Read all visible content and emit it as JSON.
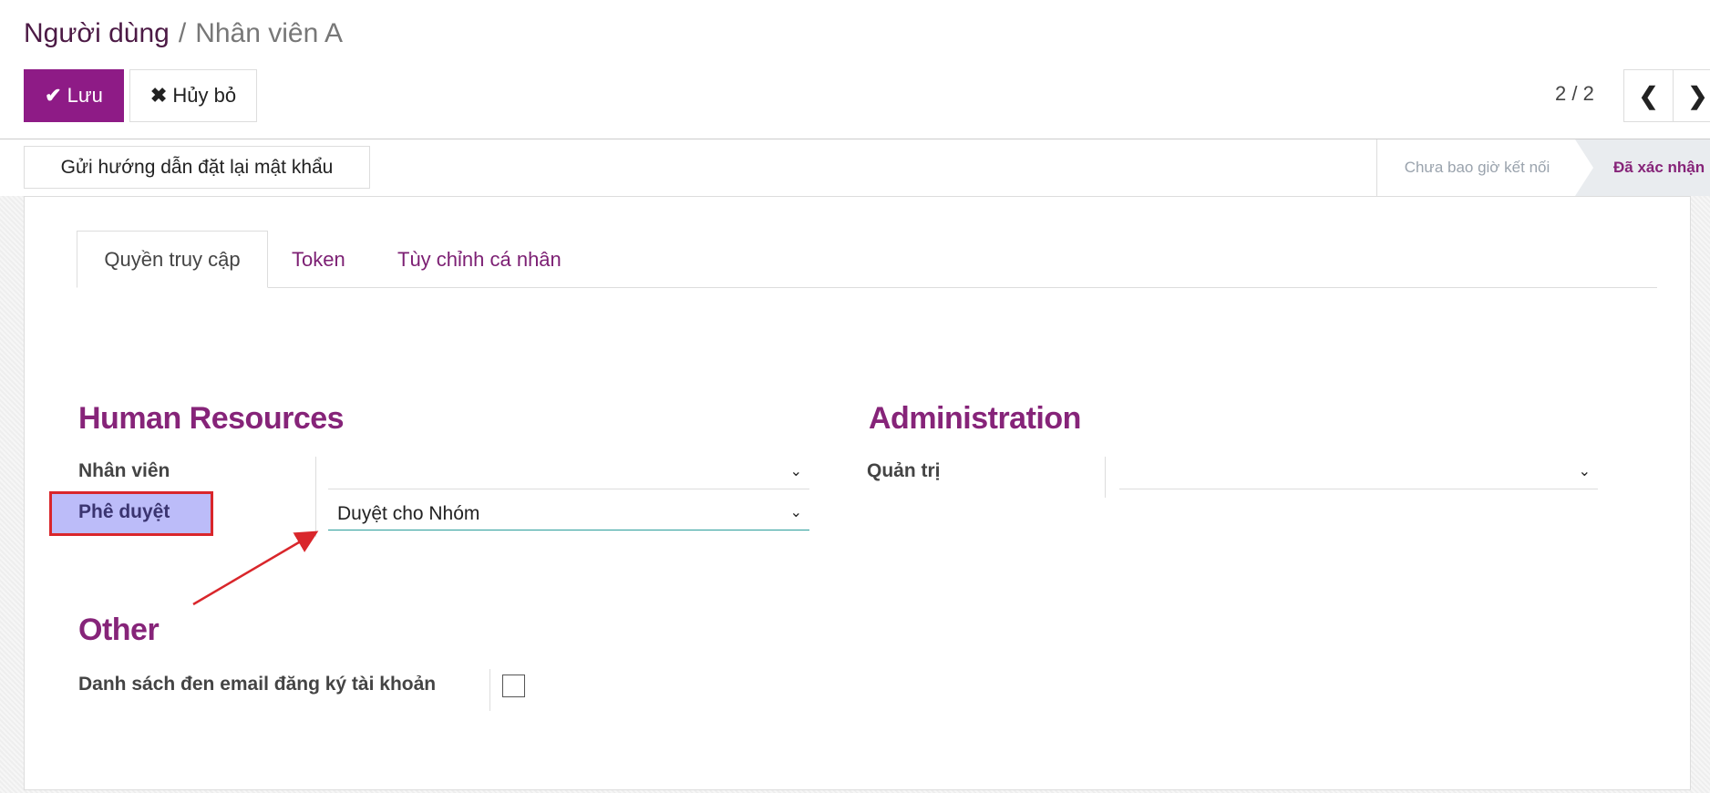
{
  "breadcrumb": {
    "parent": "Người dùng",
    "separator": "/",
    "current": "Nhân viên A"
  },
  "toolbar": {
    "save_label": "Lưu",
    "discard_label": "Hủy bỏ",
    "save_icon": "check-icon",
    "discard_icon": "times-icon"
  },
  "pager": {
    "value": "2 / 2",
    "prev_icon": "chevron-left-icon",
    "next_icon": "chevron-right-icon"
  },
  "header": {
    "reset_password_label": "Gửi hướng dẫn đặt lại mật khẩu"
  },
  "statusbar": {
    "states": [
      {
        "label": "Chưa bao giờ kết nối",
        "active": false
      },
      {
        "label": "Đã xác nhận",
        "active": true
      }
    ]
  },
  "tabs": [
    {
      "label": "Quyền truy cập",
      "active": true
    },
    {
      "label": "Token",
      "active": false
    },
    {
      "label": "Tùy chỉnh cá nhân",
      "active": false
    }
  ],
  "sections": {
    "human_resources": {
      "title": "Human Resources",
      "fields": [
        {
          "label": "Nhân viên",
          "value": ""
        },
        {
          "label": "Phê duyệt",
          "value": "Duyệt cho Nhóm"
        }
      ]
    },
    "administration": {
      "title": "Administration",
      "fields": [
        {
          "label": "Quản trị",
          "value": ""
        }
      ]
    },
    "other": {
      "title": "Other",
      "fields": [
        {
          "label": "Danh sách đen email đăng ký tài khoản",
          "checked": false
        }
      ]
    }
  },
  "colors": {
    "brand": "#8e1b86",
    "heading": "#862479",
    "highlight": "#bcbcf9",
    "annotation": "#d9262b",
    "focus_underline": "#2a9d9a"
  }
}
